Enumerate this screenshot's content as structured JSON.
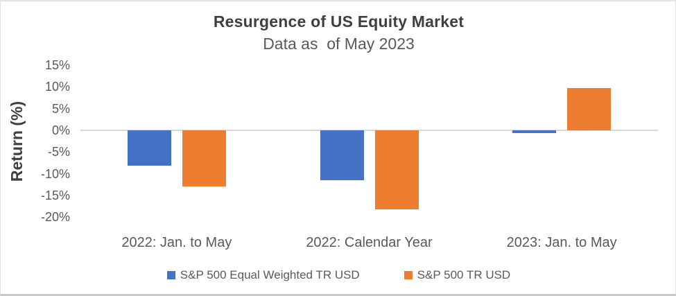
{
  "chart_data": {
    "type": "bar",
    "title": "Resurgence of US Equity Market",
    "subtitle": "Data as  of May 2023",
    "ylabel": "Return (%)",
    "xlabel": "",
    "categories": [
      "2022: Jan. to May",
      "2022: Calendar Year",
      "2023: Jan. to May"
    ],
    "series": [
      {
        "name": "S&P 500 Equal Weighted TR USD",
        "color": "#4472C4",
        "values": [
          -8.2,
          -11.5,
          -0.7
        ]
      },
      {
        "name": "S&P 500 TR USD",
        "color": "#ED7D31",
        "values": [
          -12.9,
          -18.2,
          9.7
        ]
      }
    ],
    "y_ticks": [
      {
        "label": "15%",
        "value": 15
      },
      {
        "label": "10%",
        "value": 10
      },
      {
        "label": "5%",
        "value": 5
      },
      {
        "label": "0%",
        "value": 0
      },
      {
        "label": "-5%",
        "value": -5
      },
      {
        "label": "-10%",
        "value": -10
      },
      {
        "label": "-15%",
        "value": -15
      },
      {
        "label": "-20%",
        "value": -20
      }
    ],
    "ylim": [
      -20,
      15
    ],
    "grid": "zero-line-only",
    "legend_position": "bottom",
    "colors": {
      "series_blue": "#4472C4",
      "series_orange": "#ED7D31",
      "title_text": "#3F3F3F",
      "axis_text": "#595959",
      "zero_line": "#D9D9D9"
    }
  }
}
